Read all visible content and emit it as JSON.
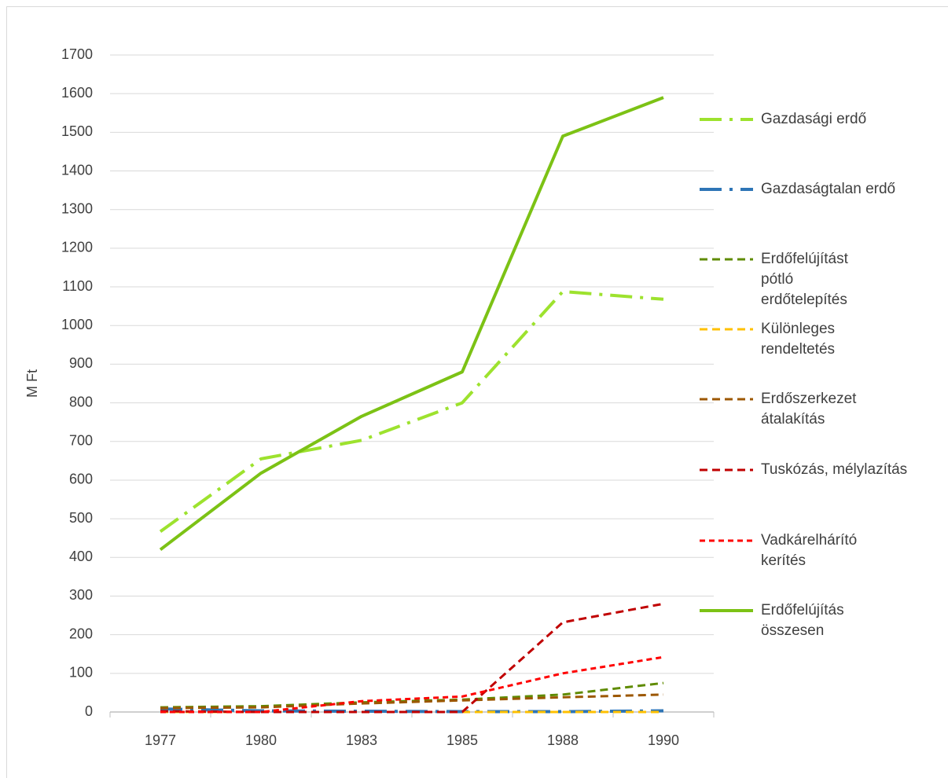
{
  "chart_data": {
    "type": "line",
    "y_label": "M Ft",
    "categories": [
      "1977",
      "1980",
      "1983",
      "1985",
      "1988",
      "1990"
    ],
    "ylim": [
      0,
      1700
    ],
    "yticks": [
      0,
      100,
      200,
      300,
      400,
      500,
      600,
      700,
      800,
      900,
      1000,
      1100,
      1200,
      1300,
      1400,
      1500,
      1600,
      1700
    ],
    "grid": true,
    "legend": "right",
    "series": [
      {
        "name": "Gazdasági erdő",
        "color": "#9de22e",
        "style": "dashdot",
        "values": [
          467,
          655,
          703,
          800,
          1088,
          1068
        ]
      },
      {
        "name": "Gazdaságtalan erdő",
        "color": "#2e75b6",
        "style": "dashdot",
        "values": [
          8,
          3,
          2,
          1,
          1,
          3
        ]
      },
      {
        "name": "Erdőfelújítást pótló erdőtelepítés",
        "color": "#5f8b00",
        "style": "dashed",
        "values": [
          12,
          15,
          25,
          32,
          45,
          75
        ]
      },
      {
        "name": "Különleges rendeltetés",
        "color": "#ffc000",
        "style": "dashed",
        "values": [
          0,
          0,
          0,
          0,
          0,
          0
        ]
      },
      {
        "name": "Erdőszerkezet átalakítás",
        "color": "#9c5700",
        "style": "dashed",
        "values": [
          10,
          12,
          22,
          30,
          38,
          45
        ]
      },
      {
        "name": "Tuskózás, mélylazítás",
        "color": "#c00000",
        "style": "dashed",
        "values": [
          2,
          0,
          0,
          0,
          232,
          280
        ]
      },
      {
        "name": "Vadkárelhárító kerítés",
        "color": "#ff0000",
        "style": "dotted",
        "values": [
          0,
          0,
          28,
          40,
          100,
          142
        ]
      },
      {
        "name": "Erdőfelújítás összesen",
        "color": "#7cc215",
        "style": "solid",
        "values": [
          420,
          618,
          765,
          880,
          1490,
          1590
        ]
      }
    ]
  }
}
